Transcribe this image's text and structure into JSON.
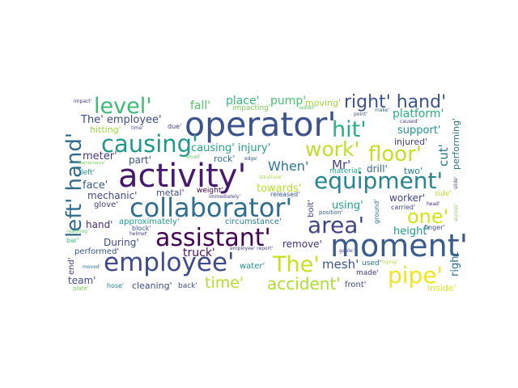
{
  "words": [
    {
      "text": "operator'",
      "color": "#3b528b"
    },
    {
      "text": "activity'",
      "color": "#46186e"
    },
    {
      "text": "moment'",
      "color": "#3a5c8c"
    },
    {
      "text": "employee'",
      "color": "#3e4a89"
    },
    {
      "text": "assistant'",
      "color": "#440154"
    },
    {
      "text": "collaborator'",
      "color": "#2f6e8e"
    },
    {
      "text": "equipment'",
      "color": "#25848e"
    },
    {
      "text": "causing'",
      "color": "#1f9a8a"
    },
    {
      "text": "left' hand'",
      "color": "#2f6b8e"
    },
    {
      "text": "level'",
      "color": "#3bbb75"
    },
    {
      "text": "hit'",
      "color": "#29af7f"
    },
    {
      "text": "work'",
      "color": "#bddf26"
    },
    {
      "text": "floor'",
      "color": "#c2df23"
    },
    {
      "text": "right' hand'",
      "color": "#3b528b"
    },
    {
      "text": "area'",
      "color": "#404688"
    },
    {
      "text": "one'",
      "color": "#d5e21a"
    },
    {
      "text": "pipe'",
      "color": "#f1e51d"
    },
    {
      "text": "The'",
      "color": "#c8e020"
    },
    {
      "text": "time'",
      "color": "#b5de2b"
    },
    {
      "text": "accident'",
      "color": "#addc30"
    },
    {
      "text": "fall'",
      "color": "#52c569"
    },
    {
      "text": "place'",
      "color": "#35b779"
    },
    {
      "text": "pump'",
      "color": "#4ac16d"
    },
    {
      "text": "moving'",
      "color": "#a0da39"
    },
    {
      "text": "impacting'",
      "color": "#76d054"
    },
    {
      "text": "ladder'",
      "color": "#5ec962"
    },
    {
      "text": "platform'",
      "color": "#29af7f"
    },
    {
      "text": "The' employee'",
      "color": "#3e4a89"
    },
    {
      "text": "hitting'",
      "color": "#9dd93b"
    },
    {
      "text": "due'",
      "color": "#433e85"
    },
    {
      "text": "support'",
      "color": "#1f948c"
    },
    {
      "text": "injured'",
      "color": "#433e85"
    },
    {
      "text": "performing'",
      "color": "#2c728e"
    },
    {
      "text": "causing' injury'",
      "color": "#1fa187"
    },
    {
      "text": "When'",
      "color": "#2a788e"
    },
    {
      "text": "Mr'",
      "color": "#414487"
    },
    {
      "text": "meter'",
      "color": "#443983"
    },
    {
      "text": "part'",
      "color": "#3b528b"
    },
    {
      "text": "rock'",
      "color": "#2c728e"
    },
    {
      "text": "edge'",
      "color": "#355f8d"
    },
    {
      "text": "material'",
      "color": "#22a884"
    },
    {
      "text": "drill'",
      "color": "#31688e"
    },
    {
      "text": "two'",
      "color": "#277f8e"
    },
    {
      "text": "cut'",
      "color": "#2a788e"
    },
    {
      "text": "slide'",
      "color": "#3e4989"
    },
    {
      "text": "left'",
      "color": "#1f948c"
    },
    {
      "text": "structure'",
      "color": "#a8db34"
    },
    {
      "text": "face'",
      "color": "#38598c"
    },
    {
      "text": "metal'",
      "color": "#3d4d8a"
    },
    {
      "text": "weight'",
      "color": "#440154"
    },
    {
      "text": "towards'",
      "color": "#b8de29"
    },
    {
      "text": "mechanic'",
      "color": "#3f4788"
    },
    {
      "text": "immediately'",
      "color": "#443a83"
    },
    {
      "text": "released'",
      "color": "#38598c"
    },
    {
      "text": "worker'",
      "color": "#414487"
    },
    {
      "text": "glove'",
      "color": "#453882"
    },
    {
      "text": "using'",
      "color": "#1fa088"
    },
    {
      "text": "bolt'",
      "color": "#404588"
    },
    {
      "text": "position'",
      "color": "#355f8d"
    },
    {
      "text": "ground'",
      "color": "#2d718e"
    },
    {
      "text": "carried'",
      "color": "#3f4788"
    },
    {
      "text": "head'",
      "color": "#482677"
    },
    {
      "text": "hand'",
      "color": "#472d7b"
    },
    {
      "text": "approximately'",
      "color": "#1f9e89"
    },
    {
      "text": "circumstance'",
      "color": "#26828e"
    },
    {
      "text": "height'",
      "color": "#1f9a8a"
    },
    {
      "text": "finger'",
      "color": "#3c4f8a"
    },
    {
      "text": "block'",
      "color": "#3b528b"
    },
    {
      "text": "During'",
      "color": "#3e4989"
    },
    {
      "text": "remove'",
      "color": "#46327e"
    },
    {
      "text": "truck'",
      "color": "#471063"
    },
    {
      "text": "gable'",
      "color": "#414487"
    },
    {
      "text": "performed'",
      "color": "#3a538b"
    },
    {
      "text": "employee' report'",
      "color": "#433e85"
    },
    {
      "text": "mesh'",
      "color": "#3a548c"
    },
    {
      "text": "used'",
      "color": "#2c718e"
    },
    {
      "text": "right'",
      "color": "#2e6f8e"
    },
    {
      "text": "team'",
      "color": "#3e4a89"
    },
    {
      "text": "water'",
      "color": "#228c8d"
    },
    {
      "text": "made'",
      "color": "#463480"
    },
    {
      "text": "end'",
      "color": "#443b84"
    },
    {
      "text": "moved'",
      "color": "#2d708e"
    },
    {
      "text": "hose'",
      "color": "#26818e"
    },
    {
      "text": "cleaning'",
      "color": "#3e4989"
    },
    {
      "text": "back'",
      "color": "#3e4c8a"
    },
    {
      "text": "front'",
      "color": "#3d4e8a"
    },
    {
      "text": "inside'",
      "color": "#dde318"
    },
    {
      "text": "impact'",
      "color": "#46327e"
    },
    {
      "text": "time'",
      "color": "#414487"
    },
    {
      "text": "maintenance'",
      "color": "#73d056"
    },
    {
      "text": "small'",
      "color": "#5cc863"
    },
    {
      "text": "helmet'",
      "color": "#453781"
    },
    {
      "text": "point'",
      "color": "#414487"
    },
    {
      "text": "make'",
      "color": "#31688e"
    },
    {
      "text": "caused'",
      "color": "#463480"
    },
    {
      "text": "side'",
      "color": "#bade28"
    },
    {
      "text": "access'",
      "color": "#7ad151"
    },
    {
      "text": "reaching'",
      "color": "#5ec962"
    },
    {
      "text": "bar'",
      "color": "#3bbb75"
    },
    {
      "text": "trying'",
      "color": "#b0dd2f"
    },
    {
      "text": "plate'",
      "color": "#7ad151"
    }
  ]
}
